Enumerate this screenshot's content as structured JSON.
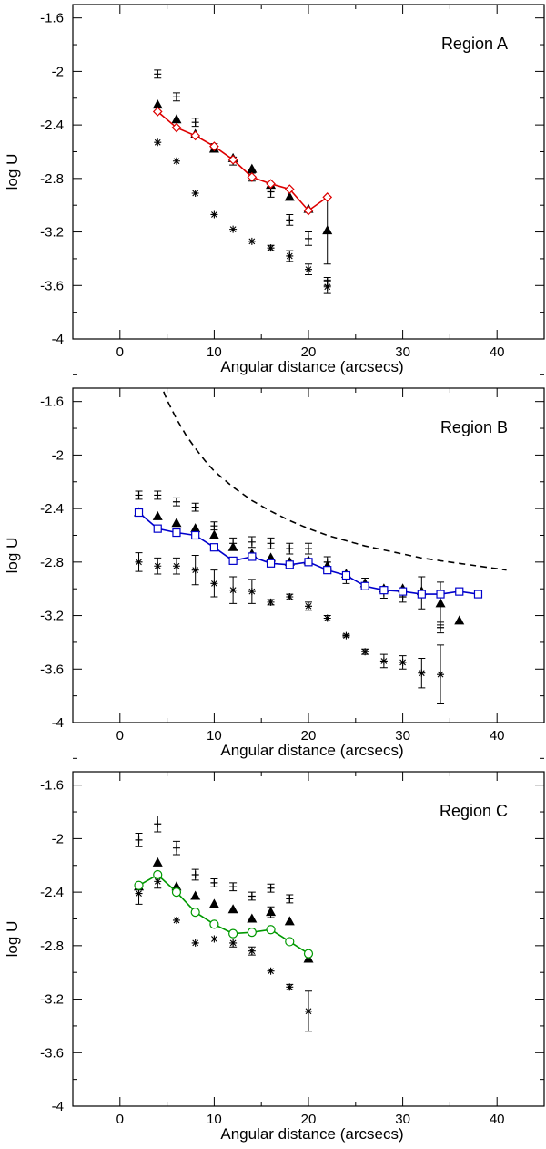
{
  "chart_data": [
    {
      "type": "scatter",
      "title": "Region A",
      "xlabel": "Angular distance (arcsecs)",
      "ylabel": "log U",
      "xlim": [
        -5,
        45
      ],
      "ylim": [
        -4,
        -1.5
      ],
      "x_ticks": [
        0,
        10,
        20,
        30,
        40
      ],
      "y_ticks": [
        -1.6,
        -2,
        -2.4,
        -2.8,
        -3.2,
        -3.6,
        -4
      ],
      "colors": {
        "model": "#dd0000"
      },
      "series": [
        {
          "name": "plus",
          "marker": "plus",
          "errorbars": true,
          "x": [
            4,
            6,
            8,
            10,
            12,
            14,
            16,
            18,
            20,
            22
          ],
          "y": [
            -2.02,
            -2.19,
            -2.38,
            -2.57,
            -2.67,
            -2.79,
            -2.9,
            -3.11,
            -3.25,
            -3.57
          ],
          "err": [
            0.03,
            0.03,
            0.03,
            0.03,
            0.03,
            0.03,
            0.04,
            0.04,
            0.05,
            0.03
          ]
        },
        {
          "name": "triangle",
          "marker": "triangle",
          "x": [
            4,
            6,
            8,
            10,
            12,
            14,
            16,
            18,
            20,
            22
          ],
          "y": [
            -2.25,
            -2.36,
            -2.47,
            -2.58,
            -2.65,
            -2.73,
            -2.85,
            -2.94,
            -3.03,
            -3.19
          ],
          "err": [
            0,
            0,
            0,
            0,
            0,
            0,
            0,
            0,
            0,
            0.25
          ]
        },
        {
          "name": "star",
          "marker": "star",
          "x": [
            4,
            6,
            8,
            10,
            12,
            14,
            16,
            18,
            20,
            22
          ],
          "y": [
            -2.53,
            -2.67,
            -2.91,
            -3.07,
            -3.18,
            -3.27,
            -3.32,
            -3.38,
            -3.48,
            -3.61
          ],
          "err": [
            0,
            0,
            0,
            0,
            0,
            0,
            0.02,
            0.04,
            0.04,
            0.05
          ]
        },
        {
          "name": "model",
          "marker": "diamond",
          "line": true,
          "color": "#dd0000",
          "x": [
            4,
            6,
            8,
            10,
            12,
            14,
            16,
            18,
            20,
            22
          ],
          "y": [
            -2.3,
            -2.42,
            -2.48,
            -2.56,
            -2.66,
            -2.79,
            -2.84,
            -2.88,
            -3.04,
            -2.94
          ]
        }
      ]
    },
    {
      "type": "scatter",
      "title": "Region B",
      "xlabel": "Angular distance (arcsecs)",
      "ylabel": "log U",
      "xlim": [
        -5,
        45
      ],
      "ylim": [
        -4,
        -1.5
      ],
      "x_ticks": [
        0,
        10,
        20,
        30,
        40
      ],
      "y_ticks": [
        -1.6,
        -2,
        -2.4,
        -2.8,
        -3.2,
        -3.6,
        -4
      ],
      "colors": {
        "model": "#0000cc"
      },
      "series": [
        {
          "name": "plus",
          "marker": "plus",
          "errorbars": true,
          "x": [
            2,
            4,
            6,
            8,
            10,
            12,
            14,
            16,
            18,
            20,
            22,
            24,
            26,
            28,
            30,
            32,
            34
          ],
          "y": [
            -2.3,
            -2.3,
            -2.35,
            -2.39,
            -2.53,
            -2.66,
            -2.65,
            -2.66,
            -2.7,
            -2.7,
            -2.8,
            -2.92,
            -2.96,
            -3.03,
            -3.06,
            -3.03,
            -3.29
          ],
          "err": [
            0.03,
            0.03,
            0.03,
            0.03,
            0.03,
            0.04,
            0.04,
            0.04,
            0.04,
            0.04,
            0.04,
            0.04,
            0.04,
            0.04,
            0.04,
            0.12,
            0.04
          ]
        },
        {
          "name": "triangle",
          "marker": "triangle",
          "x": [
            2,
            4,
            6,
            8,
            10,
            12,
            14,
            16,
            18,
            20,
            22,
            24,
            26,
            28,
            30,
            32,
            34,
            36
          ],
          "y": [
            -2.43,
            -2.46,
            -2.51,
            -2.55,
            -2.6,
            -2.69,
            -2.74,
            -2.77,
            -2.8,
            -2.79,
            -2.83,
            -2.89,
            -2.96,
            -3.0,
            -3.0,
            -3.02,
            -3.11,
            -3.24
          ],
          "err": [
            0,
            0,
            0,
            0,
            0,
            0,
            0,
            0,
            0,
            0,
            0,
            0,
            0,
            0,
            0,
            0,
            0.16,
            0
          ]
        },
        {
          "name": "star",
          "marker": "star",
          "x": [
            2,
            4,
            6,
            8,
            10,
            12,
            14,
            16,
            18,
            20,
            22,
            24,
            26,
            28,
            30,
            32,
            34
          ],
          "y": [
            -2.8,
            -2.83,
            -2.83,
            -2.86,
            -2.96,
            -3.01,
            -3.02,
            -3.1,
            -3.06,
            -3.13,
            -3.22,
            -3.35,
            -3.47,
            -3.54,
            -3.55,
            -3.63,
            -3.64
          ],
          "err": [
            0.07,
            0.06,
            0.06,
            0.11,
            0.1,
            0.1,
            0.09,
            0.02,
            0.02,
            0.03,
            0.02,
            0.01,
            0.02,
            0.05,
            0.05,
            0.11,
            0.22
          ]
        },
        {
          "name": "model",
          "marker": "square",
          "line": true,
          "color": "#0000cc",
          "x": [
            2,
            4,
            6,
            8,
            10,
            12,
            14,
            16,
            18,
            20,
            22,
            24,
            26,
            28,
            30,
            32,
            34,
            36,
            38
          ],
          "y": [
            -2.43,
            -2.55,
            -2.58,
            -2.6,
            -2.69,
            -2.79,
            -2.76,
            -2.81,
            -2.82,
            -2.8,
            -2.86,
            -2.9,
            -2.98,
            -3.01,
            -3.02,
            -3.04,
            -3.04,
            -3.02,
            -3.04
          ],
          "err": []
        },
        {
          "name": "dashed-curve",
          "style": "dashed",
          "color": "#000000",
          "x": [
            4.2,
            5,
            6,
            7,
            8,
            9,
            10,
            12,
            14,
            16,
            18,
            20,
            22,
            24,
            26,
            28,
            30,
            32,
            34,
            36,
            38,
            41
          ],
          "y": [
            -1.45,
            -1.59,
            -1.73,
            -1.85,
            -1.95,
            -2.04,
            -2.12,
            -2.24,
            -2.34,
            -2.42,
            -2.49,
            -2.55,
            -2.6,
            -2.64,
            -2.68,
            -2.71,
            -2.74,
            -2.77,
            -2.79,
            -2.81,
            -2.83,
            -2.86
          ]
        }
      ]
    },
    {
      "type": "scatter",
      "title": "Region C",
      "xlabel": "Angular distance (arcsecs)",
      "ylabel": "log U",
      "xlim": [
        -5,
        45
      ],
      "ylim": [
        -4,
        -1.5
      ],
      "x_ticks": [
        0,
        10,
        20,
        30,
        40
      ],
      "y_ticks": [
        -1.6,
        -2,
        -2.4,
        -2.8,
        -3.2,
        -3.6,
        -4
      ],
      "colors": {
        "model": "#009900"
      },
      "series": [
        {
          "name": "plus",
          "marker": "plus",
          "errorbars": true,
          "x": [
            2,
            4,
            6,
            8,
            10,
            12,
            14,
            16,
            18,
            20
          ],
          "y": [
            -2.01,
            -1.89,
            -2.07,
            -2.27,
            -2.33,
            -2.36,
            -2.43,
            -2.37,
            -2.45,
            -2.88
          ],
          "err": [
            0.05,
            0.06,
            0.05,
            0.04,
            0.03,
            0.03,
            0.03,
            0.03,
            0.03,
            0.03
          ]
        },
        {
          "name": "triangle",
          "marker": "triangle",
          "x": [
            2,
            4,
            6,
            8,
            10,
            12,
            14,
            16,
            18,
            20
          ],
          "y": [
            -2.36,
            -2.18,
            -2.36,
            -2.43,
            -2.49,
            -2.53,
            -2.6,
            -2.55,
            -2.62,
            -2.9
          ],
          "err": [
            0,
            0,
            0,
            0,
            0,
            0,
            0,
            0.04,
            0,
            0
          ]
        },
        {
          "name": "star",
          "marker": "star",
          "x": [
            2,
            4,
            6,
            8,
            10,
            12,
            14,
            16,
            18,
            20
          ],
          "y": [
            -2.41,
            -2.32,
            -2.61,
            -2.78,
            -2.75,
            -2.78,
            -2.84,
            -2.99,
            -3.11,
            -3.29
          ],
          "err": [
            0.08,
            0.05,
            0,
            0,
            0,
            0.03,
            0.03,
            0,
            0.02,
            0.15
          ]
        },
        {
          "name": "model",
          "marker": "circle",
          "line": true,
          "color": "#009900",
          "x": [
            2,
            4,
            6,
            8,
            10,
            12,
            14,
            16,
            18,
            20
          ],
          "y": [
            -2.35,
            -2.27,
            -2.4,
            -2.55,
            -2.64,
            -2.71,
            -2.7,
            -2.68,
            -2.77,
            -2.86
          ]
        }
      ]
    }
  ]
}
